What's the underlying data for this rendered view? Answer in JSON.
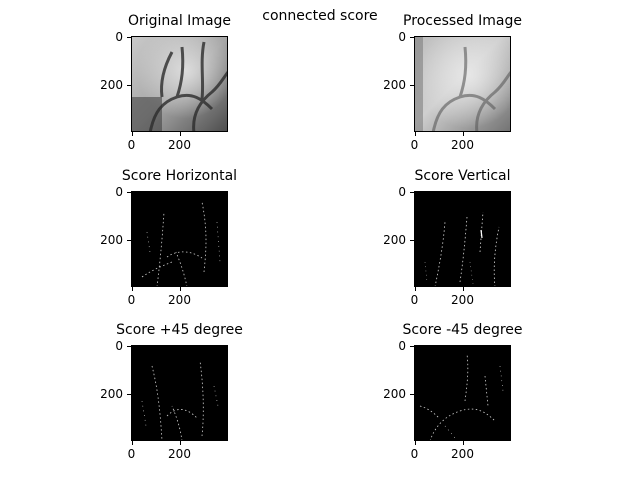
{
  "figure": {
    "suptitle": "connected score"
  },
  "panels": [
    {
      "title": "Original Image",
      "kind": "raw"
    },
    {
      "title": "Processed Image",
      "kind": "blur"
    },
    {
      "title": "Score Horizontal",
      "kind": "score"
    },
    {
      "title": "Score Vertical",
      "kind": "score"
    },
    {
      "title": "Score +45 degree",
      "kind": "score"
    },
    {
      "title": "Score -45 degree",
      "kind": "score"
    }
  ],
  "axes": {
    "x_ticks": [
      "0",
      "200"
    ],
    "y_ticks": [
      "0",
      "200"
    ],
    "x_tick_values": [
      0,
      200
    ],
    "y_tick_values": [
      0,
      200
    ],
    "image_width": 400,
    "image_height": 390
  }
}
